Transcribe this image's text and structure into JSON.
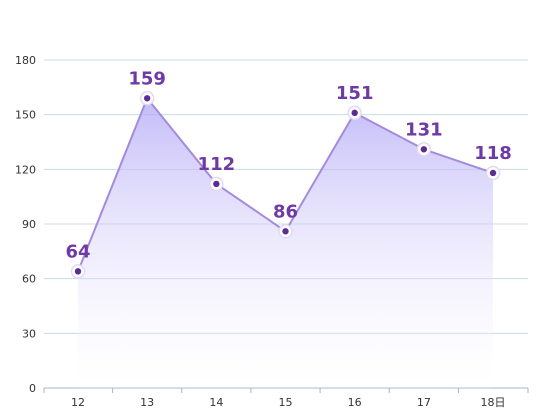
{
  "chart_data": {
    "type": "area",
    "categories": [
      "12",
      "13",
      "14",
      "15",
      "16",
      "17",
      "18日"
    ],
    "series": [
      {
        "values": [
          64,
          159,
          112,
          86,
          151,
          131,
          118
        ]
      }
    ],
    "data_labels": [
      "64",
      "159",
      "112",
      "86",
      "151",
      "131",
      "118"
    ],
    "y_ticks": [
      "0",
      "30",
      "60",
      "90",
      "120",
      "150",
      "180"
    ],
    "ylim": [
      0,
      180
    ],
    "grid": true,
    "legend": "none",
    "colors": {
      "line": "#A58BDB",
      "area_top": "#AFA4F6",
      "area_bottom": "#FFFFFF",
      "marker_fill": "#5B2C91",
      "marker_ring": "#FFFFFF",
      "label": "#6D3AA6",
      "grid": "#C8DCE8",
      "axis": "#9FB8C8"
    }
  }
}
